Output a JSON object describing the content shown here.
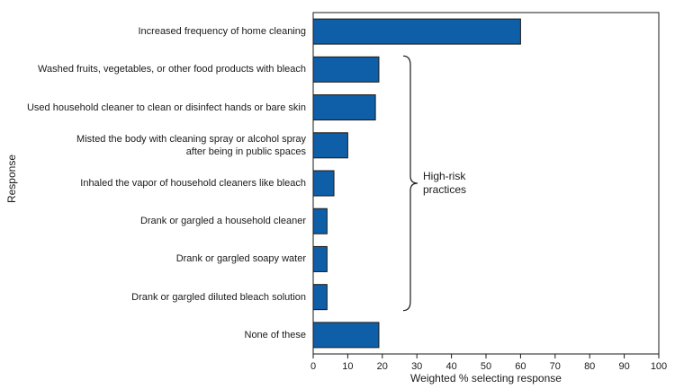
{
  "chart_data": {
    "type": "bar",
    "orientation": "horizontal",
    "categories": [
      "Increased frequency of home cleaning",
      "Washed fruits, vegetables, or other food products with bleach",
      "Used household cleaner to clean or disinfect hands or bare skin",
      "Misted the body with cleaning spray or alcohol spray\nafter being in public spaces",
      "Inhaled the vapor of household cleaners like bleach",
      "Drank or gargled a household cleaner",
      "Drank or gargled soapy water",
      "Drank or gargled diluted bleach solution",
      "None of these"
    ],
    "values": [
      60,
      19,
      18,
      10,
      6,
      4,
      4,
      4,
      19
    ],
    "xlabel": "Weighted % selecting response",
    "ylabel": "Response",
    "xlim": [
      0,
      100
    ],
    "xticks": [
      0,
      10,
      20,
      30,
      40,
      50,
      60,
      70,
      80,
      90,
      100
    ],
    "grid": false,
    "bar_color": "#0f5ea8",
    "annotation": {
      "text": "High-risk\npractices",
      "brace_from_category": 1,
      "brace_to_category": 7
    }
  }
}
